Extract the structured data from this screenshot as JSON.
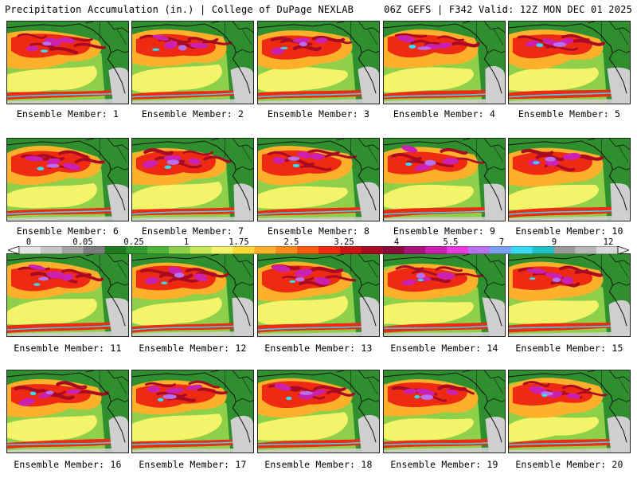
{
  "header": {
    "left_title": "Precipitation Accumulation (in.) | College of DuPage NEXLAB",
    "right_title": "06Z GEFS | F342 Valid: 12Z MON DEC 01 2025"
  },
  "legend": {
    "labels": [
      "0",
      "0.05",
      "0.25",
      "1",
      "1.75",
      "2.5",
      "3.25",
      "4",
      "5.5",
      "7",
      "9",
      "12"
    ],
    "colors": [
      "#e4e4e4",
      "#c6c6c6",
      "#a3a3a3",
      "#7d7d7d",
      "#1f7a1f",
      "#2f9a2f",
      "#4fb43a",
      "#8fd04a",
      "#c8e85a",
      "#f4f46a",
      "#ffd83a",
      "#ffb02a",
      "#ff8a1a",
      "#ff5a12",
      "#ee2a12",
      "#cc1414",
      "#a80a24",
      "#8a0a3a",
      "#a8127a",
      "#cc20b0",
      "#ea3ae0",
      "#b870f0",
      "#7aa0f8",
      "#38d8f8",
      "#20c0c8",
      "#9a9a9a",
      "#b8b8b8",
      "#d8d8d8"
    ]
  },
  "members": [
    {
      "label": "Ensemble Member: 1"
    },
    {
      "label": "Ensemble Member: 2"
    },
    {
      "label": "Ensemble Member: 3"
    },
    {
      "label": "Ensemble Member: 4"
    },
    {
      "label": "Ensemble Member: 5"
    },
    {
      "label": "Ensemble Member: 6"
    },
    {
      "label": "Ensemble Member: 7"
    },
    {
      "label": "Ensemble Member: 8"
    },
    {
      "label": "Ensemble Member: 9"
    },
    {
      "label": "Ensemble Member: 10"
    },
    {
      "label": "Ensemble Member: 11"
    },
    {
      "label": "Ensemble Member: 12"
    },
    {
      "label": "Ensemble Member: 13"
    },
    {
      "label": "Ensemble Member: 14"
    },
    {
      "label": "Ensemble Member: 15"
    },
    {
      "label": "Ensemble Member: 16"
    },
    {
      "label": "Ensemble Member: 17"
    },
    {
      "label": "Ensemble Member: 18"
    },
    {
      "label": "Ensemble Member: 19"
    },
    {
      "label": "Ensemble Member: 20"
    }
  ],
  "map_colors": {
    "land": "#2f8f2f",
    "ocean_light": "#8fd04a",
    "yellow": "#f4f46a",
    "orange": "#ffb02a",
    "red": "#ee2a12",
    "dark_red": "#a80a24",
    "magenta": "#cc20b0",
    "purple": "#b870f0",
    "cyan": "#38d8f8",
    "gray": "#cfcfcf",
    "coast": "#111111"
  }
}
